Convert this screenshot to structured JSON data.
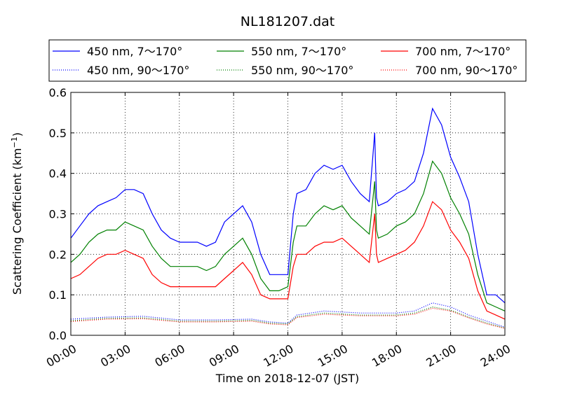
{
  "chart_data": {
    "type": "line",
    "title": "NL181207.dat",
    "xlabel": "Time on 2018-12-07 (JST)",
    "ylabel_main": "Scattering Coefficient (km",
    "ylabel_sup": "−1",
    "ylabel_close": ")",
    "x_unit": "hours",
    "xlim": [
      0,
      24
    ],
    "ylim": [
      0,
      0.6
    ],
    "grid": true,
    "legend_position": "top (above plot)",
    "x_ticks": [
      {
        "value": 0,
        "label": "00:00"
      },
      {
        "value": 3,
        "label": "03:00"
      },
      {
        "value": 6,
        "label": "06:00"
      },
      {
        "value": 9,
        "label": "09:00"
      },
      {
        "value": 12,
        "label": "12:00"
      },
      {
        "value": 15,
        "label": "15:00"
      },
      {
        "value": 18,
        "label": "18:00"
      },
      {
        "value": 21,
        "label": "21:00"
      },
      {
        "value": 24,
        "label": "24:00"
      }
    ],
    "y_ticks": [
      {
        "value": 0.0,
        "label": "0.0"
      },
      {
        "value": 0.1,
        "label": "0.1"
      },
      {
        "value": 0.2,
        "label": "0.2"
      },
      {
        "value": 0.3,
        "label": "0.3"
      },
      {
        "value": 0.4,
        "label": "0.4"
      },
      {
        "value": 0.5,
        "label": "0.5"
      },
      {
        "value": 0.6,
        "label": "0.6"
      }
    ],
    "series": [
      {
        "name": "450 nm, 7～170°",
        "color": "#0000ff",
        "style": "solid",
        "x": [
          0,
          0.5,
          1,
          1.5,
          2,
          2.5,
          3,
          3.5,
          4,
          4.5,
          5,
          5.5,
          6,
          6.5,
          7,
          7.5,
          8,
          8.5,
          9,
          9.5,
          10,
          10.5,
          11,
          11.5,
          12,
          12.3,
          12.5,
          13,
          13.5,
          14,
          14.5,
          15,
          15.5,
          16,
          16.5,
          16.8,
          16.9,
          17,
          17.5,
          18,
          18.5,
          19,
          19.5,
          20,
          20.5,
          21,
          21.5,
          22,
          22.5,
          23,
          23.5,
          24
        ],
        "y": [
          0.24,
          0.27,
          0.3,
          0.32,
          0.33,
          0.34,
          0.36,
          0.36,
          0.35,
          0.3,
          0.26,
          0.24,
          0.23,
          0.23,
          0.23,
          0.22,
          0.23,
          0.28,
          0.3,
          0.32,
          0.28,
          0.2,
          0.15,
          0.15,
          0.15,
          0.3,
          0.35,
          0.36,
          0.4,
          0.42,
          0.41,
          0.42,
          0.38,
          0.35,
          0.33,
          0.5,
          0.34,
          0.32,
          0.33,
          0.35,
          0.36,
          0.38,
          0.45,
          0.56,
          0.52,
          0.44,
          0.39,
          0.33,
          0.2,
          0.1,
          0.1,
          0.08
        ]
      },
      {
        "name": "550 nm, 7～170°",
        "color": "#008000",
        "style": "solid",
        "x": [
          0,
          0.5,
          1,
          1.5,
          2,
          2.5,
          3,
          3.5,
          4,
          4.5,
          5,
          5.5,
          6,
          6.5,
          7,
          7.5,
          8,
          8.5,
          9,
          9.5,
          10,
          10.5,
          11,
          11.5,
          12,
          12.3,
          12.5,
          13,
          13.5,
          14,
          14.5,
          15,
          15.5,
          16,
          16.5,
          16.8,
          16.9,
          17,
          17.5,
          18,
          18.5,
          19,
          19.5,
          20,
          20.5,
          21,
          21.5,
          22,
          22.5,
          23,
          23.5,
          24
        ],
        "y": [
          0.18,
          0.2,
          0.23,
          0.25,
          0.26,
          0.26,
          0.28,
          0.27,
          0.26,
          0.22,
          0.19,
          0.17,
          0.17,
          0.17,
          0.17,
          0.16,
          0.17,
          0.2,
          0.22,
          0.24,
          0.2,
          0.14,
          0.11,
          0.11,
          0.12,
          0.23,
          0.27,
          0.27,
          0.3,
          0.32,
          0.31,
          0.32,
          0.29,
          0.27,
          0.25,
          0.38,
          0.26,
          0.24,
          0.25,
          0.27,
          0.28,
          0.3,
          0.35,
          0.43,
          0.4,
          0.34,
          0.3,
          0.25,
          0.15,
          0.08,
          0.07,
          0.06
        ]
      },
      {
        "name": "700 nm, 7～170°",
        "color": "#ff0000",
        "style": "solid",
        "x": [
          0,
          0.5,
          1,
          1.5,
          2,
          2.5,
          3,
          3.5,
          4,
          4.5,
          5,
          5.5,
          6,
          6.5,
          7,
          7.5,
          8,
          8.5,
          9,
          9.5,
          10,
          10.5,
          11,
          11.5,
          12,
          12.3,
          12.5,
          13,
          13.5,
          14,
          14.5,
          15,
          15.5,
          16,
          16.5,
          16.8,
          16.9,
          17,
          17.5,
          18,
          18.5,
          19,
          19.5,
          20,
          20.5,
          21,
          21.5,
          22,
          22.5,
          23,
          23.5,
          24
        ],
        "y": [
          0.14,
          0.15,
          0.17,
          0.19,
          0.2,
          0.2,
          0.21,
          0.2,
          0.19,
          0.15,
          0.13,
          0.12,
          0.12,
          0.12,
          0.12,
          0.12,
          0.12,
          0.14,
          0.16,
          0.18,
          0.15,
          0.1,
          0.09,
          0.09,
          0.09,
          0.17,
          0.2,
          0.2,
          0.22,
          0.23,
          0.23,
          0.24,
          0.22,
          0.2,
          0.18,
          0.3,
          0.2,
          0.18,
          0.19,
          0.2,
          0.21,
          0.23,
          0.27,
          0.33,
          0.31,
          0.26,
          0.23,
          0.19,
          0.11,
          0.06,
          0.05,
          0.04
        ]
      },
      {
        "name": "450 nm, 90～170°",
        "color": "#0000ff",
        "style": "dotted",
        "x": [
          0,
          2,
          4,
          6,
          8,
          10,
          11,
          12,
          12.5,
          14,
          16,
          18,
          19,
          20,
          21,
          22,
          23,
          24
        ],
        "y": [
          0.04,
          0.045,
          0.047,
          0.038,
          0.038,
          0.04,
          0.033,
          0.03,
          0.05,
          0.06,
          0.055,
          0.055,
          0.06,
          0.08,
          0.07,
          0.05,
          0.035,
          0.02
        ]
      },
      {
        "name": "550 nm, 90～170°",
        "color": "#008000",
        "style": "dotted",
        "x": [
          0,
          2,
          4,
          6,
          8,
          10,
          11,
          12,
          12.5,
          14,
          16,
          18,
          19,
          20,
          21,
          22,
          23,
          24
        ],
        "y": [
          0.036,
          0.042,
          0.043,
          0.035,
          0.035,
          0.037,
          0.03,
          0.028,
          0.046,
          0.055,
          0.05,
          0.05,
          0.055,
          0.07,
          0.062,
          0.045,
          0.03,
          0.018
        ]
      },
      {
        "name": "700 nm, 90～170°",
        "color": "#ff0000",
        "style": "dotted",
        "x": [
          0,
          2,
          4,
          6,
          8,
          10,
          11,
          12,
          12.5,
          14,
          16,
          18,
          19,
          20,
          21,
          22,
          23,
          24
        ],
        "y": [
          0.034,
          0.04,
          0.041,
          0.033,
          0.033,
          0.035,
          0.028,
          0.026,
          0.044,
          0.052,
          0.048,
          0.048,
          0.052,
          0.067,
          0.06,
          0.043,
          0.028,
          0.017
        ]
      }
    ]
  }
}
